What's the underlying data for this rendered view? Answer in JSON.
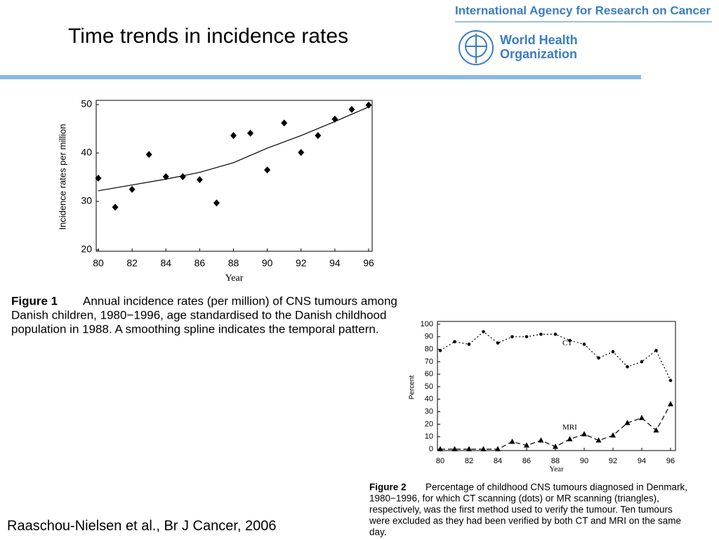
{
  "title": "Time trends in incidence rates",
  "logo": {
    "agency": "International Agency for Research on Cancer",
    "who_lines": [
      "World Health",
      "Organization"
    ]
  },
  "citation": "Raaschou-Nielsen et al., Br J Cancer, 2006",
  "chart_data": [
    {
      "type": "scatter",
      "x_label": "Year",
      "y_label": "Incidence rates per million",
      "xlim": [
        80,
        96
      ],
      "ylim": [
        20,
        50
      ],
      "xticks": [
        80,
        82,
        84,
        86,
        88,
        90,
        92,
        94,
        96
      ],
      "yticks": [
        20,
        30,
        40,
        50
      ],
      "color": "#000000",
      "marker": "diamond",
      "x": [
        80,
        81,
        82,
        83,
        84,
        85,
        86,
        87,
        88,
        89,
        90,
        91,
        92,
        93,
        94,
        95,
        96
      ],
      "values": [
        34.8,
        28.8,
        32.5,
        39.7,
        35.1,
        35.1,
        34.5,
        29.7,
        43.6,
        44.1,
        36.5,
        46.2,
        40.1,
        43.6,
        47.0,
        49.0,
        49.9
      ],
      "fit": {
        "x": [
          80,
          82,
          84,
          86,
          88,
          90,
          92,
          94,
          96
        ],
        "values": [
          32.2,
          33.4,
          34.6,
          36.0,
          38.0,
          41.0,
          43.6,
          46.5,
          49.5
        ]
      },
      "caption": {
        "label": "Figure 1",
        "lines": [
          "Annual incidence rates (per million) of CNS tumours among",
          "Danish children, 1980−1996, age standardised to the Danish childhood",
          "population in 1988. A smoothing spline indicates the temporal pattern."
        ]
      }
    },
    {
      "type": "line",
      "x_label": "Year",
      "y_label": "Percent",
      "xlim": [
        80,
        96
      ],
      "ylim": [
        0,
        100
      ],
      "xticks": [
        80,
        82,
        84,
        86,
        88,
        90,
        92,
        94,
        96
      ],
      "yticks": [
        0,
        10,
        20,
        30,
        40,
        50,
        60,
        70,
        80,
        90,
        100
      ],
      "x": [
        80,
        81,
        82,
        83,
        84,
        85,
        86,
        87,
        88,
        89,
        90,
        91,
        92,
        93,
        94,
        95,
        96
      ],
      "series": [
        {
          "name": "CT",
          "color": "#000000",
          "marker": "dot",
          "dash": "2,3",
          "values": [
            79,
            86,
            84,
            94,
            85,
            90,
            90,
            92,
            92,
            87,
            84,
            73,
            78,
            66,
            70,
            79,
            55
          ]
        },
        {
          "name": "MRI",
          "color": "#000000",
          "marker": "triangle",
          "dash": "7,4",
          "values": [
            0,
            0,
            0,
            0,
            0,
            6,
            3,
            7,
            2,
            8,
            12,
            7,
            11,
            21,
            25,
            15,
            36
          ]
        }
      ],
      "caption": {
        "label": "Figure 2",
        "lines": [
          "Percentage of childhood CNS tumours diagnosed in Denmark,",
          "1980−1996, for which CT scanning (dots) or MR scanning (triangles),",
          "respectively, was the first method used to verify the tumour. Ten tumours",
          "were excluded as they had been verified by both CT and MRI on the same",
          "day."
        ]
      }
    }
  ]
}
